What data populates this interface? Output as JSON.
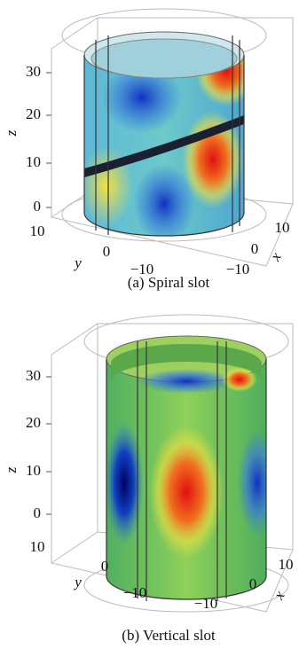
{
  "panels": [
    {
      "caption": "(a) Spiral slot",
      "z_label": "z",
      "y_label": "y",
      "x_label": "x",
      "z_ticks": [
        0,
        10,
        20,
        30
      ],
      "y_ticks": [
        10,
        0,
        {
          "value": -10,
          "label": "−10"
        }
      ],
      "x_ticks": [
        10,
        0,
        {
          "value": -10,
          "label": "−10"
        }
      ]
    },
    {
      "caption": "(b) Vertical slot",
      "z_label": "z",
      "y_label": "y",
      "x_label": "x",
      "z_ticks": [
        0,
        10,
        20,
        30
      ],
      "y_ticks": [
        10,
        0,
        {
          "value": -10,
          "label": "−10"
        }
      ],
      "x_ticks": [
        10,
        0,
        {
          "value": -10,
          "label": "−10"
        }
      ]
    }
  ]
}
